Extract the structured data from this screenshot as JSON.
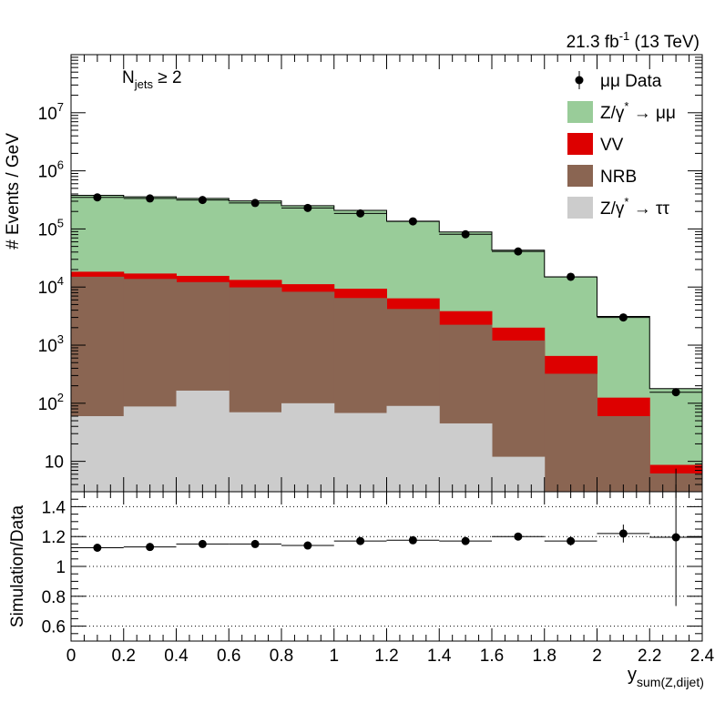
{
  "chart_data": [
    {
      "type": "bar",
      "stacked": true,
      "log_scale": true,
      "lumi_label": "21.3 fb",
      "lumi_sup": "-1",
      "lumi_rest": " (13 TeV)",
      "annotation": {
        "main": "N",
        "sub": "jets",
        "rest": " ≥ 2"
      },
      "ylabel": "# Events / GeV",
      "ylim": [
        3,
        100000000
      ],
      "y_ticks": [
        {
          "value": 10,
          "label": "10"
        },
        {
          "value": 100,
          "base": "10",
          "exp": "2"
        },
        {
          "value": 1000,
          "base": "10",
          "exp": "3"
        },
        {
          "value": 10000,
          "base": "10",
          "exp": "4"
        },
        {
          "value": 100000,
          "base": "10",
          "exp": "5"
        },
        {
          "value": 1000000,
          "base": "10",
          "exp": "6"
        },
        {
          "value": 10000000,
          "base": "10",
          "exp": "7"
        }
      ],
      "bin_edges": [
        0,
        0.2,
        0.4,
        0.6,
        0.8,
        1.0,
        1.2,
        1.4,
        1.6,
        1.8,
        2.0,
        2.2,
        2.4
      ],
      "series": [
        {
          "name": "Z/γ* → ττ",
          "legend_main": "Z/γ",
          "legend_sup": "*",
          "legend_rest": " → ττ",
          "color": "#cccccc",
          "values": [
            60,
            88,
            165,
            70,
            100,
            68,
            90,
            45,
            12,
            2,
            0,
            0
          ]
        },
        {
          "name": "NRB",
          "legend_main": "NRB",
          "color": "#8a6552",
          "values": [
            15000,
            13700,
            12000,
            9800,
            8200,
            6400,
            4100,
            2200,
            1190,
            320,
            60,
            6.2
          ]
        },
        {
          "name": "VV",
          "legend_main": "VV",
          "color": "#dd0000",
          "values": [
            3300,
            3300,
            3400,
            3400,
            2900,
            2900,
            2200,
            1600,
            800,
            330,
            65,
            2.5
          ]
        },
        {
          "name": "Z/γ* → μμ",
          "legend_main": "Z/γ",
          "legend_sup": "*",
          "legend_rest": " → μμ",
          "color": "#99cc99",
          "values": [
            360000,
            340000,
            320000,
            290000,
            240000,
            200000,
            130000,
            85000,
            41000,
            14300,
            3000,
            170
          ]
        }
      ],
      "data_series": {
        "name": "μμ Data",
        "legend_main": "μμ Data",
        "x": [
          0.1,
          0.3,
          0.5,
          0.7,
          0.9,
          1.1,
          1.3,
          1.5,
          1.7,
          1.9,
          2.1,
          2.3
        ],
        "y": [
          350000,
          335000,
          315000,
          280000,
          230000,
          185000,
          135000,
          81000,
          41000,
          15000,
          3000,
          155
        ]
      },
      "legend_position": "top-right"
    },
    {
      "type": "scatter",
      "ylabel": "Simulation/Data",
      "xlabel": "y",
      "xlabel_sub": "sum(Z,dijet)",
      "xlim": [
        0,
        2.4
      ],
      "ylim": [
        0.5,
        1.5
      ],
      "x_tick_labels": [
        "0",
        "0.2",
        "0.4",
        "0.6",
        "0.8",
        "1",
        "1.2",
        "1.4",
        "1.6",
        "1.8",
        "2",
        "2.2",
        "2.4"
      ],
      "y_tick_labels": [
        "0.6",
        "0.8",
        "1",
        "1.2",
        "1.4"
      ],
      "y_tick_values": [
        0.6,
        0.8,
        1.0,
        1.2,
        1.4
      ],
      "gridlines_y": [
        0.6,
        0.8,
        1.0,
        1.2,
        1.4
      ],
      "x": [
        0.1,
        0.3,
        0.5,
        0.7,
        0.9,
        1.1,
        1.3,
        1.5,
        1.7,
        1.9,
        2.1,
        2.3
      ],
      "y": [
        1.125,
        1.13,
        1.15,
        1.15,
        1.14,
        1.17,
        1.175,
        1.17,
        1.2,
        1.17,
        1.22,
        1.195
      ],
      "yerr": [
        0.005,
        0.005,
        0.005,
        0.005,
        0.005,
        0.005,
        0.01,
        0.01,
        0.015,
        0.03,
        0.06,
        0.46
      ]
    }
  ]
}
